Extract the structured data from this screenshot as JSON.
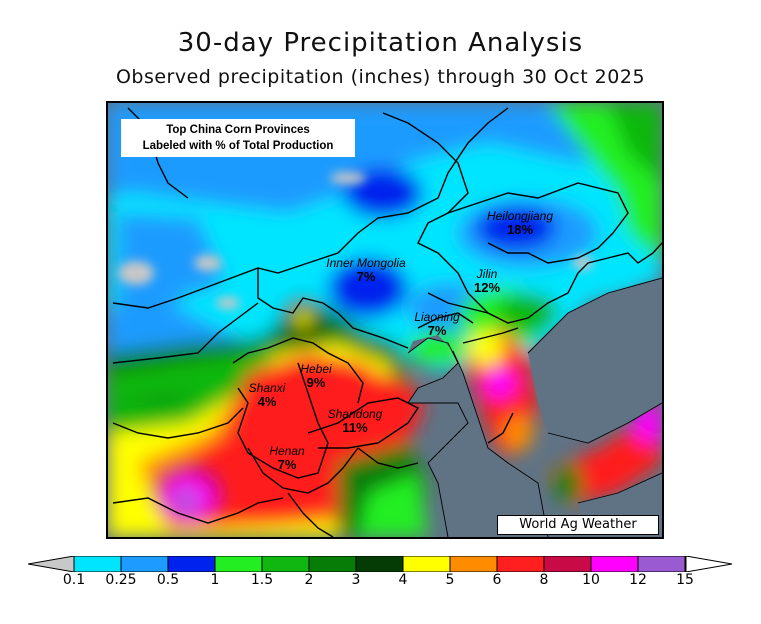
{
  "title": "30-day Precipitation Analysis",
  "subtitle": "Observed precipitation (inches) through 30 Oct 2025",
  "infobox": {
    "line1": "Top China Corn Provinces",
    "line2": "Labeled with % of Total Production"
  },
  "brand": "World Ag Weather",
  "provinces": [
    {
      "name": "Heilongjiang",
      "pct": "18%"
    },
    {
      "name": "Inner Mongolia",
      "pct": "7%"
    },
    {
      "name": "Jilin",
      "pct": "12%"
    },
    {
      "name": "Liaoning",
      "pct": "7%"
    },
    {
      "name": "Hebei",
      "pct": "9%"
    },
    {
      "name": "Shanxi",
      "pct": "4%"
    },
    {
      "name": "Shandong",
      "pct": "11%"
    },
    {
      "name": "Henan",
      "pct": "7%"
    }
  ],
  "legend": {
    "ticks": [
      "0.1",
      "0.25",
      "0.5",
      "1",
      "1.5",
      "2",
      "3",
      "4",
      "5",
      "6",
      "8",
      "10",
      "12",
      "15"
    ],
    "colors": {
      "below": "#c8c8c8",
      "c1": "#00e5ff",
      "c2": "#1e9bff",
      "c3": "#0022ee",
      "c4": "#22ee22",
      "c5": "#11b711",
      "c6": "#077d07",
      "c7": "#053c05",
      "c8": "#ffff00",
      "c9": "#ff8c00",
      "c10": "#ff1f1f",
      "c11": "#c80a46",
      "c12": "#ff00ff",
      "c13": "#9a5ad2",
      "above": "#ffffff"
    }
  }
}
